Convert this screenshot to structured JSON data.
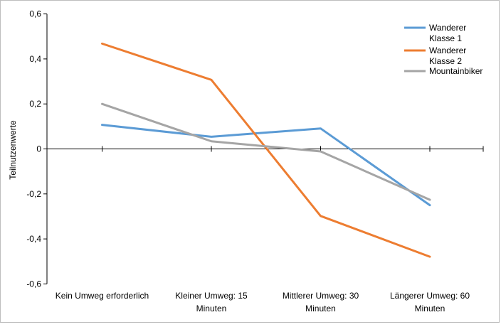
{
  "chart_data": {
    "type": "line",
    "ylabel": "Teilnutzenwerte",
    "ylim": [
      -0.6,
      0.6
    ],
    "yticks": [
      "0,6",
      "0,4",
      "0,2",
      "0",
      "-0,2",
      "-0,4",
      "-0,6"
    ],
    "ytick_values": [
      0.6,
      0.4,
      0.2,
      0,
      -0.2,
      -0.4,
      -0.6
    ],
    "categories": [
      [
        "Kein Umweg erforderlich"
      ],
      [
        "Kleiner Umweg: 15",
        "Minuten"
      ],
      [
        "Mittlerer Umweg: 30",
        "Minuten"
      ],
      [
        "Längerer Umweg: 60",
        "Minuten"
      ]
    ],
    "series": [
      {
        "name": [
          "Wanderer",
          "Klasse 1"
        ],
        "color": "#5b9bd5",
        "values": [
          0.107,
          0.054,
          0.091,
          -0.25
        ]
      },
      {
        "name": [
          "Wanderer",
          "Klasse 2"
        ],
        "color": "#ed7d31",
        "values": [
          0.468,
          0.307,
          -0.298,
          -0.479
        ]
      },
      {
        "name": [
          "Mountainbiker"
        ],
        "color": "#a5a5a5",
        "values": [
          0.2,
          0.034,
          -0.011,
          -0.226
        ]
      }
    ],
    "grid": false,
    "legend_position": "top-right"
  }
}
